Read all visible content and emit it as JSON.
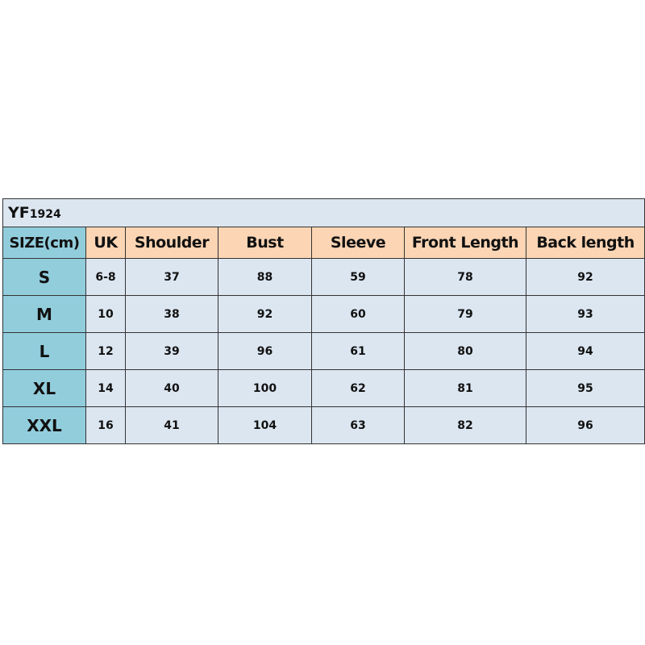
{
  "title": {
    "code": "YF",
    "number": "1924"
  },
  "columns": [
    "SIZE(cm)",
    "UK",
    "Shoulder",
    "Bust",
    "Sleeve",
    "Front Length",
    "Back length"
  ],
  "rows": [
    [
      "S",
      "6-8",
      "37",
      "88",
      "59",
      "78",
      "92"
    ],
    [
      "M",
      "10",
      "38",
      "92",
      "60",
      "79",
      "93"
    ],
    [
      "L",
      "12",
      "39",
      "96",
      "61",
      "80",
      "94"
    ],
    [
      "XL",
      "14",
      "40",
      "100",
      "62",
      "81",
      "95"
    ],
    [
      "XXL",
      "16",
      "41",
      "104",
      "63",
      "82",
      "96"
    ]
  ],
  "colors": {
    "cell": "#dce6f1",
    "header": "#fcd5b4",
    "size_column": "#92cddc"
  }
}
